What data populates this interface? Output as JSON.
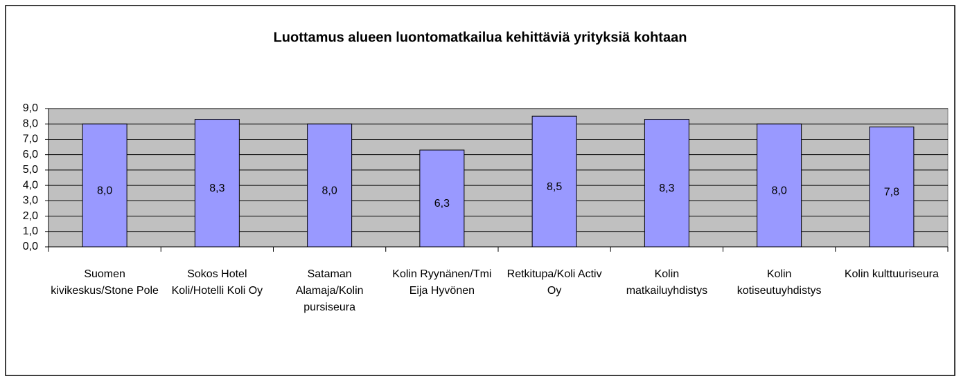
{
  "chart_data": {
    "type": "bar",
    "title": "Luottamus alueen luontomatkailua kehittäviä yrityksiä kohtaan",
    "categories": [
      "Suomen kivikeskus/Stone Pole",
      "Sokos Hotel Koli/Hotelli Koli Oy",
      "Sataman Alamaja/Kolin pursiseura",
      "Kolin Ryynänen/Tmi Eija Hyvönen",
      "Retkitupa/Koli Activ Oy",
      "Kolin matkailuyhdistys",
      "Kolin kotiseutuyhdistys",
      "Kolin kulttuuriseura"
    ],
    "values": [
      8.0,
      8.3,
      8.0,
      6.3,
      8.5,
      8.3,
      8.0,
      7.8
    ],
    "value_labels": [
      "8,0",
      "8,3",
      "8,0",
      "6,3",
      "8,5",
      "8,3",
      "8,0",
      "7,8"
    ],
    "color": "#9999ff",
    "ylim": [
      0,
      9
    ],
    "yticks": [
      {
        "value": 0,
        "label": "0,0"
      },
      {
        "value": 1,
        "label": "1,0"
      },
      {
        "value": 2,
        "label": "2,0"
      },
      {
        "value": 3,
        "label": "3,0"
      },
      {
        "value": 4,
        "label": "4,0"
      },
      {
        "value": 5,
        "label": "5,0"
      },
      {
        "value": 6,
        "label": "6,0"
      },
      {
        "value": 7,
        "label": "7,0"
      },
      {
        "value": 8,
        "label": "8,0"
      },
      {
        "value": 9,
        "label": "9,0"
      }
    ],
    "grid": true
  }
}
